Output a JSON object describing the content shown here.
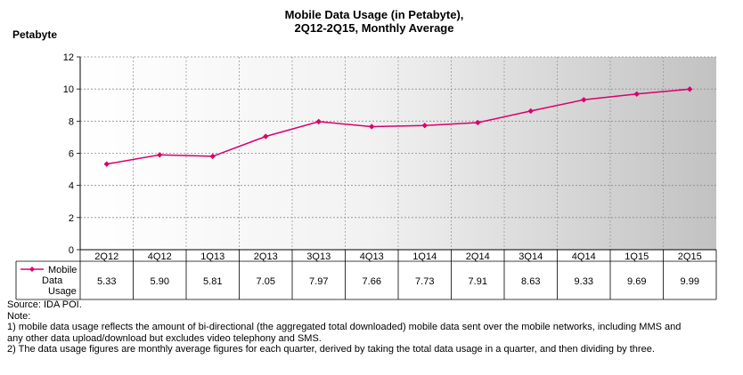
{
  "chart_data": {
    "type": "line",
    "title": "Mobile Data Usage (in Petabyte),",
    "subtitle": "2Q12-2Q15, Monthly  Average",
    "ylabel": "Petabyte",
    "ylim": [
      0,
      12
    ],
    "yticks": [
      0,
      2,
      4,
      6,
      8,
      10,
      12
    ],
    "categories": [
      "2Q12",
      "4Q12",
      "1Q13",
      "2Q13",
      "3Q13",
      "4Q13",
      "1Q14",
      "2Q14",
      "3Q14",
      "4Q14",
      "1Q15",
      "2Q15"
    ],
    "series": [
      {
        "name_lines": [
          "Mobile",
          "Data",
          "Usage"
        ],
        "values": [
          5.33,
          5.9,
          5.81,
          7.05,
          7.97,
          7.66,
          7.73,
          7.91,
          8.63,
          9.33,
          9.69,
          9.99
        ],
        "labels": [
          "5.33",
          "5.90",
          "5.81",
          "7.05",
          "7.97",
          "7.66",
          "7.73",
          "7.91",
          "8.63",
          "9.33",
          "9.69",
          "9.99"
        ]
      }
    ],
    "series_color": "#d9006c",
    "plot_background": "gradient white to gray",
    "data_table": true
  },
  "notes": {
    "source": "Source: IDA POI.",
    "heading": "Note:",
    "line1": "1)  mobile  data usage reflects the amount of bi-directional (the aggregated total downloaded) mobile data sent over the mobile networks, including MMS and",
    "line2": "any other data upload/download but excludes video telephony and SMS.",
    "line3": "2)  The  data usage figures are monthly average figures for each quarter, derived by taking the total data usage in a quarter, and then dividing by three."
  }
}
